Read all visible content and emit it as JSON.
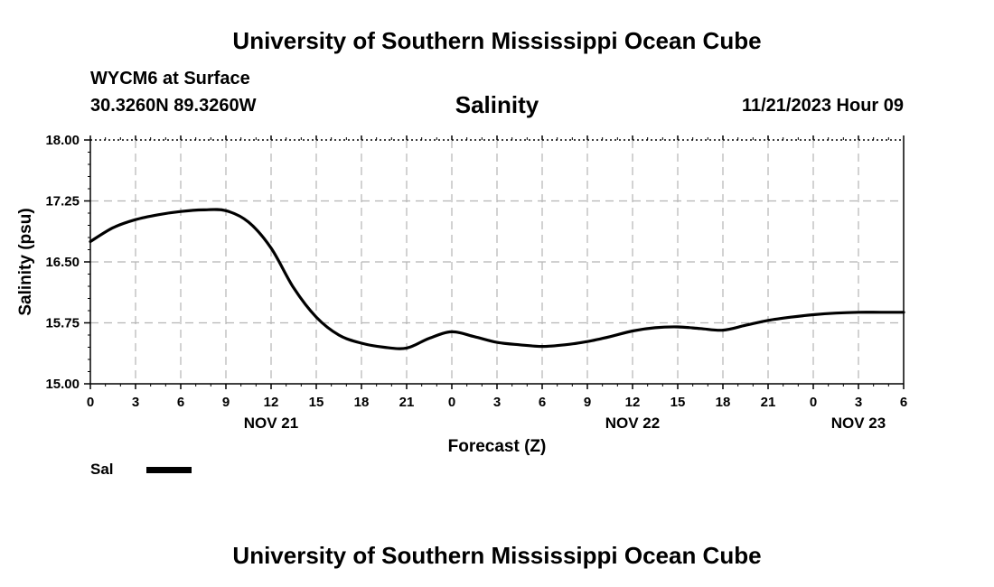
{
  "header": {
    "title": "University of Southern Mississippi Ocean Cube",
    "station": "WYCM6 at Surface",
    "coords": "30.3260N  89.3260W",
    "variable": "Salinity",
    "datetime": "11/21/2023 Hour 09"
  },
  "footer": {
    "title": "University of Southern Mississippi Ocean Cube"
  },
  "legend": {
    "label": "Sal",
    "color": "#000000"
  },
  "chart_data": {
    "type": "line",
    "title": "Salinity",
    "xlabel": "Forecast (Z)",
    "ylabel": "Salinity (psu)",
    "xlim": [
      0,
      54
    ],
    "ylim": [
      15.0,
      18.0
    ],
    "yticks": [
      "15.00",
      "15.75",
      "16.50",
      "17.25",
      "18.00"
    ],
    "yticks_values": [
      15.0,
      15.75,
      16.5,
      17.25,
      18.0
    ],
    "xticks": [
      0,
      3,
      6,
      9,
      12,
      15,
      18,
      21,
      24,
      27,
      30,
      33,
      36,
      39,
      42,
      45,
      48,
      51,
      54
    ],
    "xtick_labels": [
      "0",
      "3",
      "6",
      "9",
      "12",
      "15",
      "18",
      "21",
      "0",
      "3",
      "6",
      "9",
      "12",
      "15",
      "18",
      "21",
      "0",
      "3",
      "6"
    ],
    "date_labels": [
      {
        "x": 12,
        "label": "NOV 21"
      },
      {
        "x": 36,
        "label": "NOV 22"
      },
      {
        "x": 51,
        "label": "NOV 23"
      }
    ],
    "grid": true,
    "series": [
      {
        "name": "Sal",
        "x": [
          0,
          1.5,
          3,
          4.5,
          6,
          7.5,
          9,
          10.5,
          12,
          13.5,
          15,
          16.5,
          18,
          19.5,
          21,
          22.5,
          24,
          25.5,
          27,
          28.5,
          30,
          31.5,
          33,
          34.5,
          36,
          37.5,
          39,
          40.5,
          42,
          43.5,
          45,
          46.5,
          48,
          49.5,
          51,
          52.5,
          54
        ],
        "values": [
          16.75,
          16.92,
          17.02,
          17.08,
          17.12,
          17.14,
          17.13,
          16.99,
          16.67,
          16.18,
          15.82,
          15.6,
          15.5,
          15.45,
          15.44,
          15.56,
          15.64,
          15.58,
          15.51,
          15.48,
          15.46,
          15.48,
          15.52,
          15.58,
          15.65,
          15.69,
          15.7,
          15.68,
          15.66,
          15.72,
          15.78,
          15.82,
          15.85,
          15.87,
          15.88,
          15.88,
          15.88
        ]
      }
    ]
  }
}
